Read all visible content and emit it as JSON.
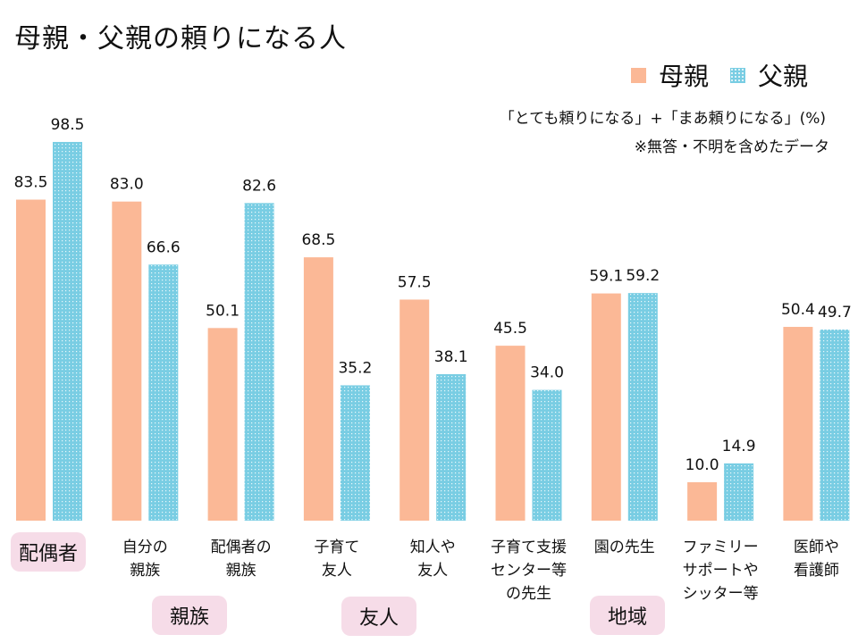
{
  "title": "母親・父親の頼りになる人",
  "legend": [
    {
      "name": "母親",
      "color": "#fbb896"
    },
    {
      "name": "父親",
      "color": "#79cde3"
    }
  ],
  "notes": {
    "line1": "「とても頼りになる」+「まあ頼りになる」(%)",
    "line2": "※無答・不明を含めたデータ"
  },
  "groups": [
    {
      "label": "配偶者"
    },
    {
      "label": "親族"
    },
    {
      "label": "友人"
    },
    {
      "label": "地域"
    }
  ],
  "chart_data": {
    "type": "bar",
    "title": "母親・父親の頼りになる人",
    "xlabel": "",
    "ylabel": "(%)",
    "ylim": [
      0,
      100
    ],
    "grid": false,
    "legend_position": "top-right",
    "categories": [
      "配偶者",
      "自分の\n親族",
      "配偶者の\n親族",
      "子育て\n友人",
      "知人や\n友人",
      "子育て支援\nセンター等\nの先生",
      "園の先生",
      "ファミリー\nサポートや\nシッター等",
      "医師や\n看護師"
    ],
    "series": [
      {
        "name": "母親",
        "color": "#fbb896",
        "values": [
          83.5,
          83.0,
          50.1,
          68.5,
          57.5,
          45.5,
          59.1,
          10.0,
          50.4
        ],
        "labels": [
          "83.5",
          "83.0",
          "50.1",
          "68.5",
          "57.5",
          "45.5",
          "59.1",
          "10.0",
          "50.4"
        ]
      },
      {
        "name": "父親",
        "color": "#79cde3",
        "values": [
          98.5,
          66.6,
          82.6,
          35.2,
          38.1,
          34.0,
          59.2,
          14.9,
          49.7
        ],
        "labels": [
          "98.5",
          "66.6",
          "82.6",
          "35.2",
          "38.1",
          "34.0",
          "59.2",
          "14.9",
          "49.7"
        ]
      }
    ]
  }
}
